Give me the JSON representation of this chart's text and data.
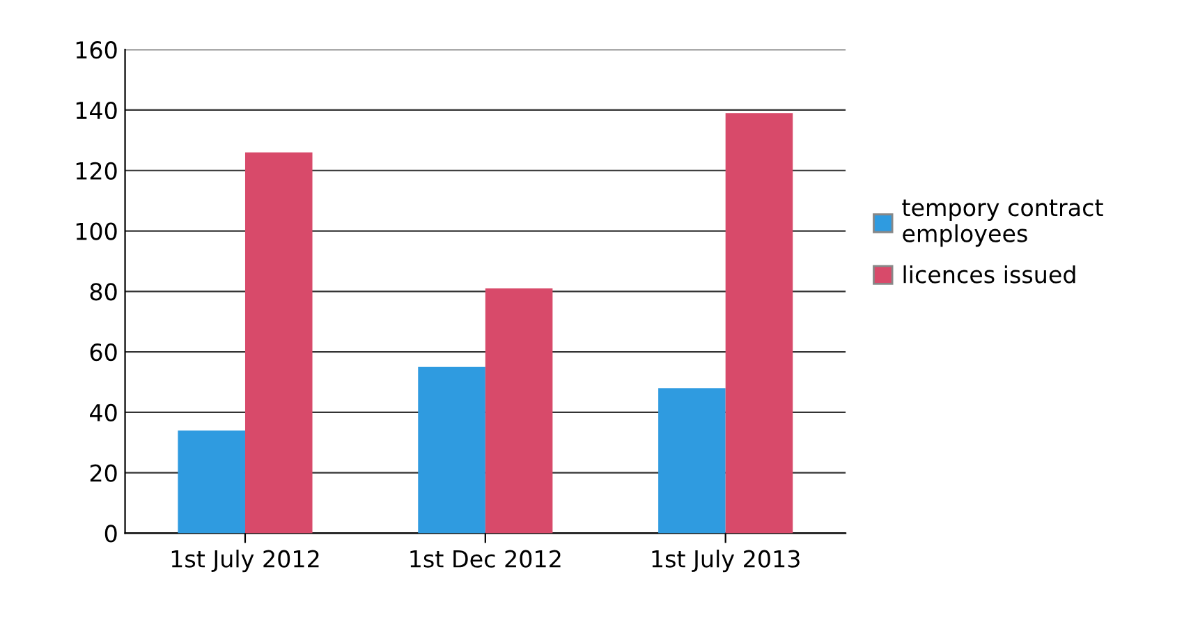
{
  "chart_data": {
    "type": "bar",
    "categories": [
      "1st July 2012",
      "1st Dec 2012",
      "1st July 2013"
    ],
    "series": [
      {
        "name": "tempory contract\nemployees",
        "color": "#2f9be0",
        "values": [
          34,
          55,
          48
        ]
      },
      {
        "name": "licences issued",
        "color": "#d84a6a",
        "values": [
          126,
          81,
          139
        ]
      }
    ],
    "ylim": [
      0,
      160
    ],
    "yticks": [
      0,
      20,
      40,
      60,
      80,
      100,
      120,
      140,
      160
    ],
    "grid": "y",
    "legend": "right"
  }
}
